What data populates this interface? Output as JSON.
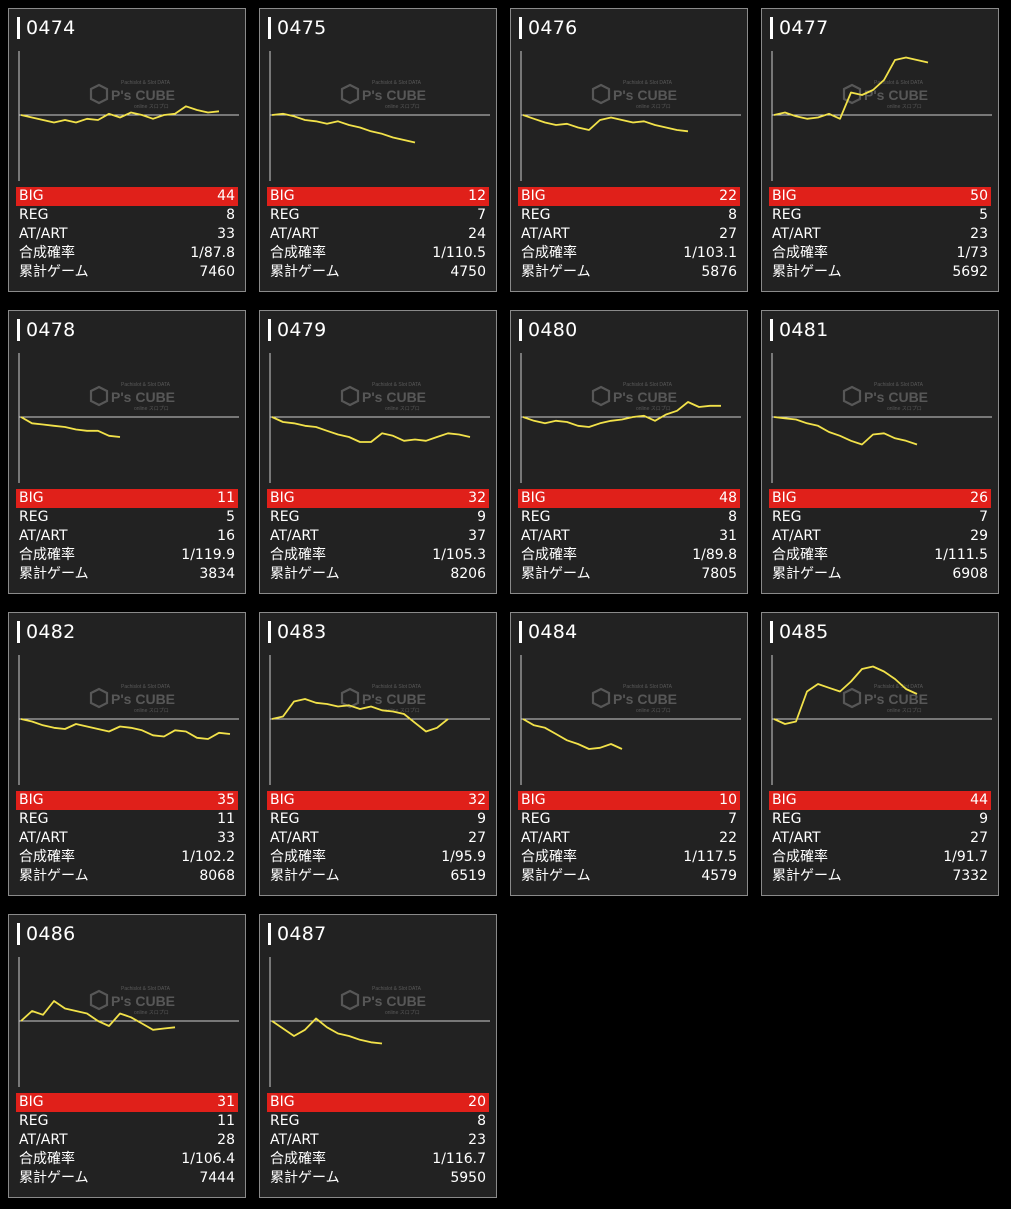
{
  "labels": {
    "big": "BIG",
    "reg": "REG",
    "atart": "AT/ART",
    "prob": "合成確率",
    "games": "累計ゲーム"
  },
  "watermark": {
    "brand": "P's CUBE",
    "top_text": "Pachislot & Slot DATA",
    "sub_text": "online スロプロ"
  },
  "colors": {
    "background": "#000000",
    "card_bg": "#222222",
    "line": "#f2e24a",
    "big_bar": "#e0201a"
  },
  "machines": [
    {
      "num": "0474",
      "big": "44",
      "reg": "8",
      "atart": "33",
      "prob": "1/87.8",
      "games": "7460",
      "series": [
        0,
        -2,
        -4,
        -6,
        -4,
        -6,
        -3,
        -4,
        1,
        -2,
        2,
        0,
        -3,
        0,
        1,
        7,
        4,
        2,
        3
      ]
    },
    {
      "num": "0475",
      "big": "12",
      "reg": "7",
      "atart": "24",
      "prob": "1/110.5",
      "games": "4750",
      "series": [
        0,
        1,
        -1,
        -4,
        -5,
        -7,
        -5,
        -8,
        -10,
        -13,
        -15,
        -18,
        -20,
        -22
      ]
    },
    {
      "num": "0476",
      "big": "22",
      "reg": "8",
      "atart": "27",
      "prob": "1/103.1",
      "games": "5876",
      "series": [
        0,
        -3,
        -6,
        -8,
        -7,
        -10,
        -12,
        -4,
        -2,
        -4,
        -6,
        -5,
        -8,
        -10,
        -12,
        -13
      ]
    },
    {
      "num": "0477",
      "big": "50",
      "reg": "5",
      "atart": "23",
      "prob": "1/73",
      "games": "5692",
      "series": [
        0,
        2,
        -1,
        -3,
        -2,
        1,
        -3,
        18,
        16,
        20,
        28,
        44,
        46,
        44,
        42
      ]
    },
    {
      "num": "0478",
      "big": "11",
      "reg": "5",
      "atart": "16",
      "prob": "1/119.9",
      "games": "3834",
      "series": [
        0,
        -5,
        -6,
        -7,
        -8,
        -10,
        -11,
        -11,
        -15,
        -16
      ]
    },
    {
      "num": "0479",
      "big": "32",
      "reg": "9",
      "atart": "37",
      "prob": "1/105.3",
      "games": "8206",
      "series": [
        0,
        -4,
        -5,
        -7,
        -8,
        -11,
        -14,
        -16,
        -20,
        -20,
        -13,
        -15,
        -19,
        -18,
        -19,
        -16,
        -13,
        -14,
        -16
      ]
    },
    {
      "num": "0480",
      "big": "48",
      "reg": "8",
      "atart": "31",
      "prob": "1/89.8",
      "games": "7805",
      "series": [
        0,
        -3,
        -5,
        -3,
        -4,
        -7,
        -8,
        -5,
        -3,
        -2,
        0,
        1,
        -3,
        2,
        5,
        12,
        8,
        9,
        9
      ]
    },
    {
      "num": "0481",
      "big": "26",
      "reg": "7",
      "atart": "29",
      "prob": "1/111.5",
      "games": "6908",
      "series": [
        0,
        -1,
        -2,
        -5,
        -7,
        -12,
        -15,
        -19,
        -22,
        -14,
        -13,
        -17,
        -19,
        -22
      ]
    },
    {
      "num": "0482",
      "big": "35",
      "reg": "11",
      "atart": "33",
      "prob": "1/102.2",
      "games": "8068",
      "series": [
        0,
        -2,
        -5,
        -7,
        -8,
        -4,
        -6,
        -8,
        -10,
        -6,
        -7,
        -9,
        -13,
        -14,
        -9,
        -10,
        -15,
        -16,
        -11,
        -12
      ]
    },
    {
      "num": "0483",
      "big": "32",
      "reg": "9",
      "atart": "27",
      "prob": "1/95.9",
      "games": "6519",
      "series": [
        0,
        2,
        14,
        16,
        13,
        12,
        10,
        11,
        8,
        10,
        7,
        6,
        4,
        -3,
        -10,
        -7,
        0
      ]
    },
    {
      "num": "0484",
      "big": "10",
      "reg": "7",
      "atart": "22",
      "prob": "1/117.5",
      "games": "4579",
      "series": [
        0,
        -5,
        -7,
        -12,
        -17,
        -20,
        -24,
        -23,
        -20,
        -24
      ]
    },
    {
      "num": "0485",
      "big": "44",
      "reg": "9",
      "atart": "27",
      "prob": "1/91.7",
      "games": "7332",
      "series": [
        0,
        -4,
        -2,
        22,
        28,
        25,
        22,
        30,
        40,
        42,
        38,
        32,
        24,
        20
      ]
    },
    {
      "num": "0486",
      "big": "31",
      "reg": "11",
      "atart": "28",
      "prob": "1/106.4",
      "games": "7444",
      "series": [
        0,
        8,
        5,
        16,
        10,
        8,
        6,
        0,
        -4,
        6,
        3,
        -2,
        -7,
        -6,
        -5
      ]
    },
    {
      "num": "0487",
      "big": "20",
      "reg": "8",
      "atart": "23",
      "prob": "1/116.7",
      "games": "5950",
      "series": [
        0,
        -6,
        -12,
        -7,
        2,
        -5,
        -10,
        -12,
        -15,
        -17,
        -18
      ]
    }
  ]
}
